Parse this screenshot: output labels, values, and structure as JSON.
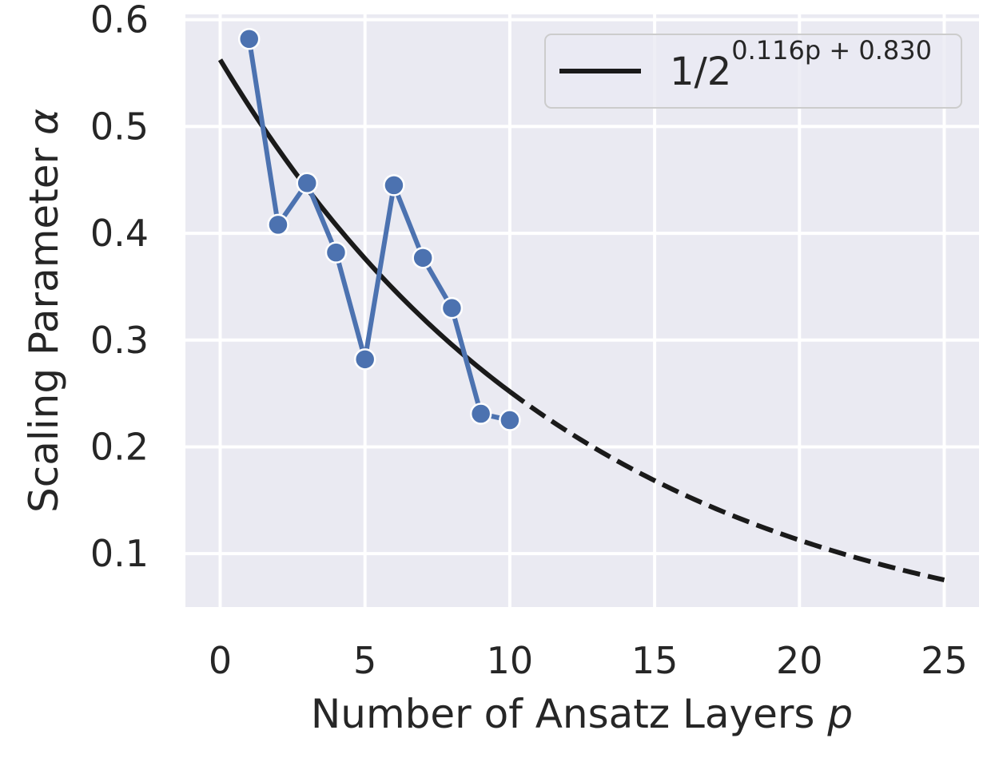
{
  "chart_data": {
    "type": "line",
    "xlabel": "Number of Ansatz Layers",
    "xlabel_var": "p",
    "ylabel": "Scaling Parameter",
    "ylabel_var": "α",
    "xlim": [
      -1.2,
      26.2
    ],
    "ylim": [
      0.05,
      0.605
    ],
    "xticks": [
      0,
      5,
      10,
      15,
      20,
      25
    ],
    "yticks": [
      0.1,
      0.2,
      0.3,
      0.4,
      0.5,
      0.6
    ],
    "xtick_labels": [
      "0",
      "5",
      "10",
      "15",
      "20",
      "25"
    ],
    "ytick_labels": [
      "0.1",
      "0.2",
      "0.3",
      "0.4",
      "0.5",
      "0.6"
    ],
    "grid": true,
    "legend_position": "top-right",
    "series": [
      {
        "kind": "markers-line",
        "color": "#4c72b0",
        "x": [
          1,
          2,
          3,
          4,
          5,
          6,
          7,
          8,
          9,
          10
        ],
        "y": [
          0.582,
          0.408,
          0.447,
          0.382,
          0.282,
          0.445,
          0.377,
          0.33,
          0.231,
          0.225
        ]
      },
      {
        "name_base": "1/2",
        "name_exponent": "0.116p + 0.830",
        "kind": "fit",
        "color": "#1a1a1a",
        "formula": {
          "base": 0.5,
          "slope": 0.116,
          "intercept": 0.83
        },
        "solid_range": [
          0,
          10
        ],
        "dashed_range": [
          10,
          25
        ]
      }
    ]
  }
}
